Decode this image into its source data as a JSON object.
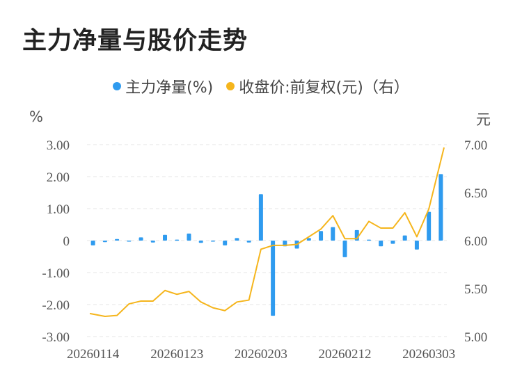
{
  "title": "主力净量与股价走势",
  "legend": [
    {
      "label": "主力净量(%)",
      "color": "#2f9bef"
    },
    {
      "label": "收盘价:前复权(元)（右）",
      "color": "#f5b51c"
    }
  ],
  "left_unit": "%",
  "right_unit": "元",
  "chart_data": {
    "type": "bar+line",
    "x_tick_labels": [
      "20260114",
      "20260123",
      "20260203",
      "20260212",
      "20260303"
    ],
    "x_tick_indices": [
      0,
      7,
      14,
      21,
      28
    ],
    "y_left": {
      "ticks": [
        "3.00",
        "2.00",
        "1.00",
        "0",
        "-1.00",
        "-2.00",
        "-3.00"
      ],
      "range": [
        -3,
        3
      ]
    },
    "y_right": {
      "ticks": [
        "7.00",
        "6.50",
        "6.00",
        "5.50",
        "5.00"
      ],
      "range": [
        5,
        7
      ]
    },
    "grid": true,
    "legend_position": "top-center",
    "series": [
      {
        "name": "主力净量(%)",
        "kind": "bar",
        "axis": "left",
        "color": "#2f9bef",
        "values": [
          -0.15,
          -0.05,
          0.05,
          -0.02,
          0.1,
          -0.06,
          0.18,
          0.03,
          0.22,
          -0.07,
          -0.02,
          -0.15,
          0.08,
          -0.06,
          1.45,
          -2.35,
          -0.18,
          -0.25,
          0.08,
          0.3,
          0.42,
          -0.52,
          0.33,
          0.03,
          -0.18,
          -0.1,
          0.16,
          -0.28,
          0.9,
          2.08
        ]
      },
      {
        "name": "收盘价:前复权(元)（右）",
        "kind": "line",
        "axis": "right",
        "color": "#f5b51c",
        "values": [
          5.24,
          5.21,
          5.22,
          5.34,
          5.37,
          5.37,
          5.48,
          5.44,
          5.47,
          5.36,
          5.3,
          5.27,
          5.36,
          5.38,
          5.91,
          5.95,
          5.95,
          5.96,
          6.04,
          6.12,
          6.26,
          6.02,
          6.02,
          6.2,
          6.13,
          6.13,
          6.29,
          6.04,
          6.33,
          6.97
        ]
      }
    ]
  }
}
